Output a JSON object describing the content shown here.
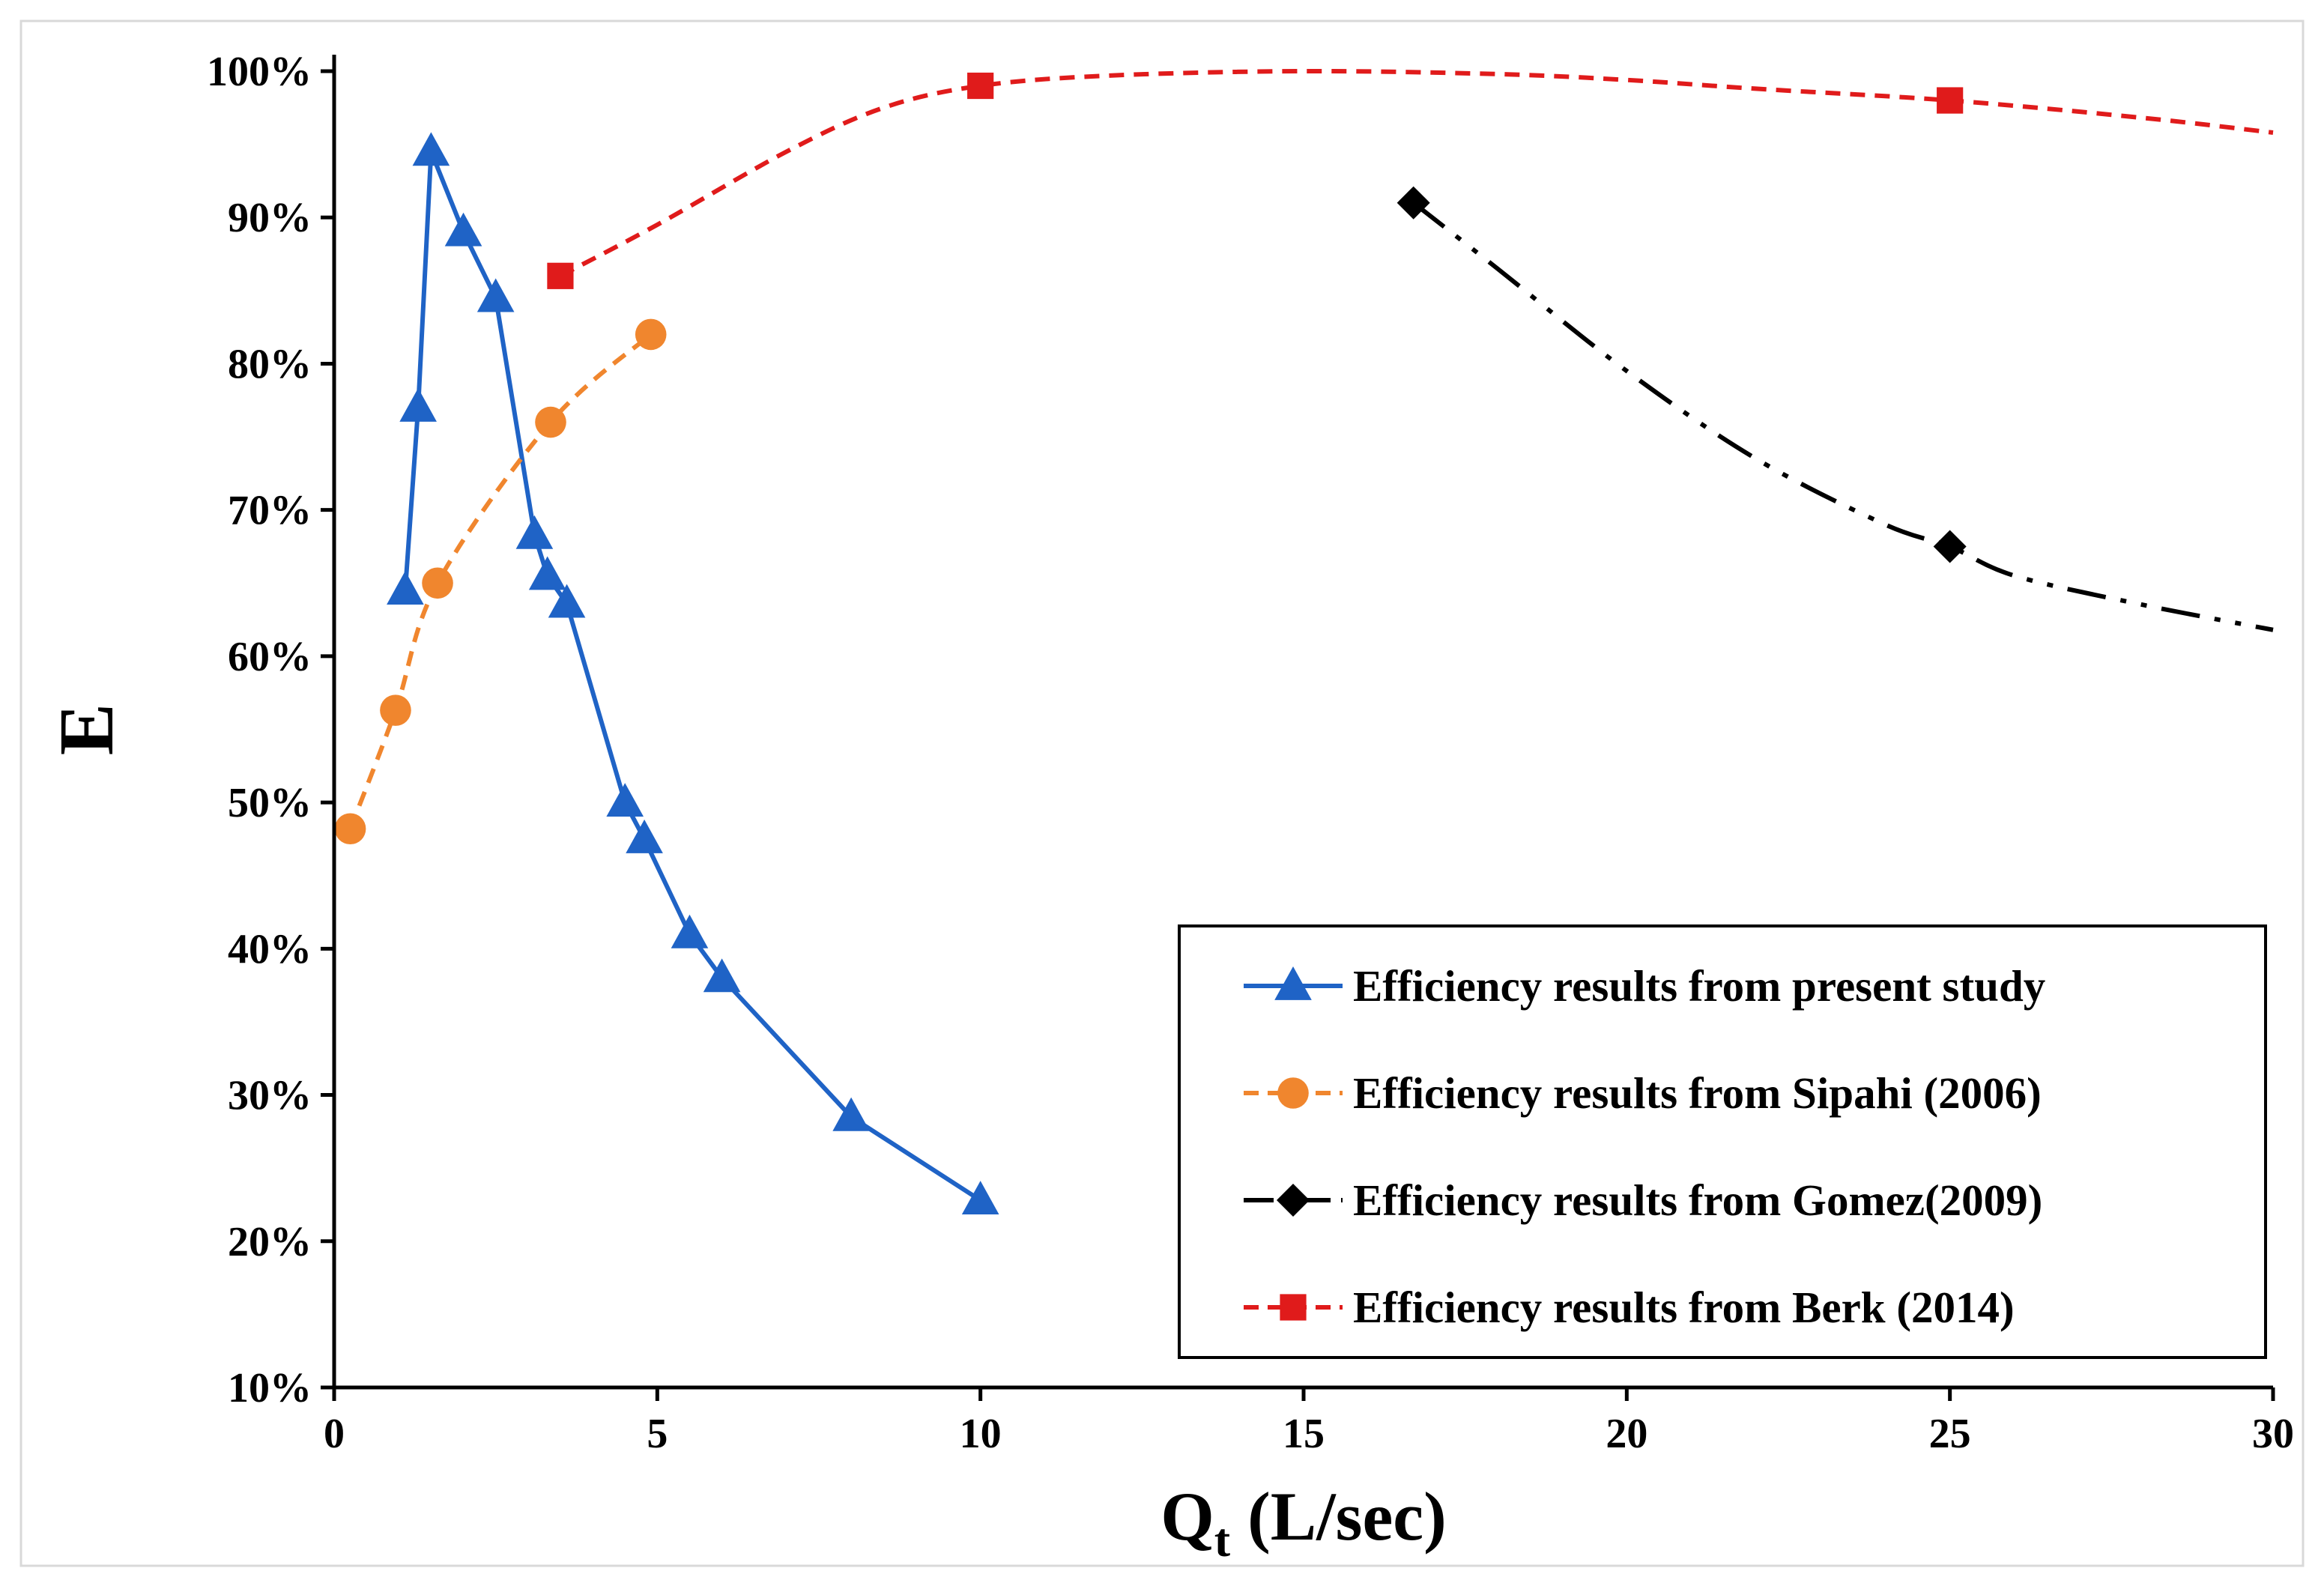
{
  "chart_data": {
    "type": "line",
    "title": "",
    "xlabel": "Qt (L/sec)",
    "xlabel_main": "Q",
    "xlabel_sub": "t",
    "xlabel_rest": " (L/sec)",
    "ylabel": "E",
    "xlim": [
      0,
      30
    ],
    "ylim": [
      0.1,
      1.0
    ],
    "x_ticks": [
      0,
      5,
      10,
      15,
      20,
      25,
      30
    ],
    "x_tick_labels": [
      "0",
      "5",
      "10",
      "15",
      "20",
      "25",
      "30"
    ],
    "y_ticks": [
      0.1,
      0.2,
      0.3,
      0.4,
      0.5,
      0.6,
      0.7,
      0.8,
      0.9,
      1.0
    ],
    "y_tick_labels": [
      "10%",
      "20%",
      "30%",
      "40%",
      "50%",
      "60%",
      "70%",
      "80%",
      "90%",
      "100%"
    ],
    "grid": false,
    "legend_position": "bottom-right",
    "series": [
      {
        "name": "Efficiency results from present study",
        "color": "#1f63c6",
        "line_style": "solid",
        "marker": "triangle",
        "x": [
          1.1,
          1.3,
          1.5,
          2.0,
          2.5,
          3.1,
          3.3,
          3.6,
          4.5,
          4.8,
          5.5,
          6.0,
          8.0,
          10.0
        ],
        "y": [
          0.645,
          0.77,
          0.945,
          0.89,
          0.845,
          0.683,
          0.655,
          0.636,
          0.5,
          0.475,
          0.41,
          0.38,
          0.285,
          0.228
        ]
      },
      {
        "name": "Efficiency results from Sipahi (2006)",
        "color": "#f0862e",
        "line_style": "dashed",
        "marker": "circle",
        "x": [
          0.25,
          0.95,
          1.6,
          3.35,
          4.9
        ],
        "y": [
          0.482,
          0.563,
          0.65,
          0.76,
          0.82
        ]
      },
      {
        "name": "Efficiency results from Gomez(2009)",
        "color": "#000000",
        "line_style": "dash-dot-dot",
        "marker": "diamond",
        "x": [
          16.7,
          25.0
        ],
        "y": [
          0.91,
          0.675
        ],
        "trend_x": [
          16.7,
          18,
          20,
          22,
          24,
          25,
          26,
          28,
          30
        ],
        "trend_y": [
          0.91,
          0.865,
          0.795,
          0.735,
          0.69,
          0.675,
          0.655,
          0.635,
          0.618
        ]
      },
      {
        "name": "Efficiency results from Berk   (2014)",
        "color": "#e01b1b",
        "line_style": "dashed",
        "marker": "square",
        "x": [
          3.5,
          10.0,
          25.0
        ],
        "y": [
          0.86,
          0.99,
          0.98
        ],
        "trend_x": [
          3.5,
          5,
          7,
          8.5,
          10,
          12,
          15,
          18,
          20,
          22,
          25,
          28,
          30
        ],
        "trend_y": [
          0.86,
          0.895,
          0.945,
          0.975,
          0.99,
          0.997,
          1.0,
          0.998,
          0.994,
          0.988,
          0.98,
          0.968,
          0.958
        ]
      }
    ]
  }
}
